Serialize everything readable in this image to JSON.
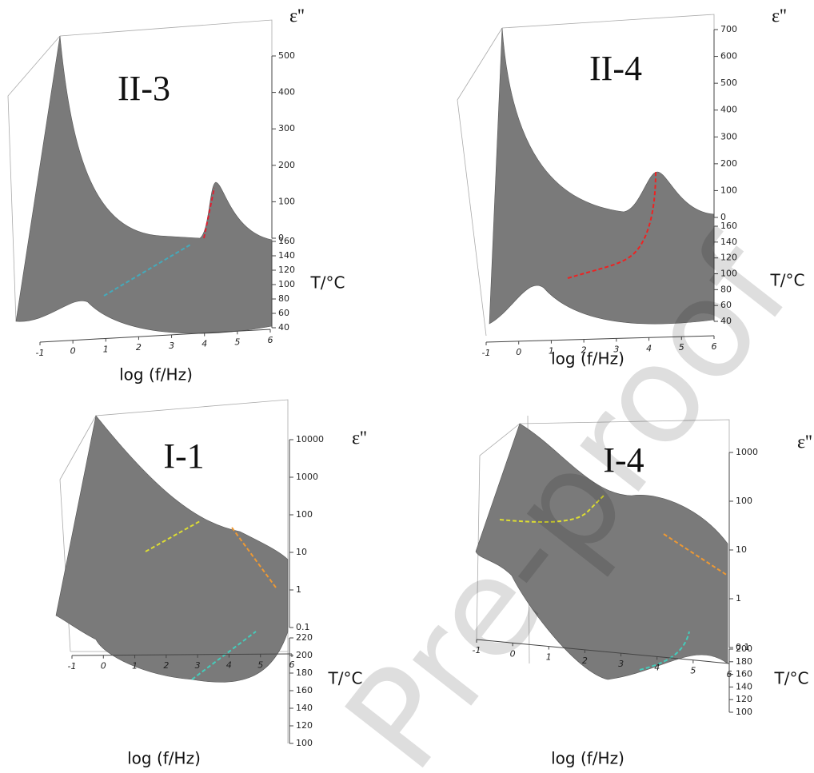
{
  "chart_data": [
    {
      "type": "surface",
      "title": "II-3",
      "x_label": "log (f/Hz)",
      "y_label": "ε''",
      "z_label": "T/°C",
      "xlim": [
        -1,
        6
      ],
      "xticks": [
        -1,
        0,
        1,
        2,
        3,
        4,
        5,
        6
      ],
      "ylim": [
        0,
        500
      ],
      "yticks": [
        0,
        100,
        200,
        300,
        400,
        500
      ],
      "ylog": false,
      "zlim": [
        40,
        160
      ],
      "zticks": [
        40,
        60,
        80,
        100,
        120,
        140,
        160
      ],
      "color": "#7a7a7a"
    },
    {
      "type": "surface",
      "title": "II-4",
      "x_label": "log (f/Hz)",
      "y_label": "ε''",
      "z_label": "T/°C",
      "xlim": [
        -1,
        6
      ],
      "xticks": [
        -1,
        0,
        1,
        2,
        3,
        4,
        5,
        6
      ],
      "ylim": [
        0,
        700
      ],
      "yticks": [
        0,
        100,
        200,
        300,
        400,
        500,
        600,
        700
      ],
      "ylog": false,
      "zlim": [
        40,
        160
      ],
      "zticks": [
        40,
        60,
        80,
        100,
        120,
        140,
        160
      ],
      "color": "#7a7a7a"
    },
    {
      "type": "surface",
      "title": "I-1",
      "x_label": "log (f/Hz)",
      "y_label": "ε''",
      "z_label": "T/°C",
      "xlim": [
        -1,
        6
      ],
      "xticks": [
        -1,
        0,
        1,
        2,
        3,
        4,
        5,
        6
      ],
      "ylim": [
        0.1,
        10000
      ],
      "yticks": [
        0.1,
        1,
        10,
        100,
        1000,
        10000
      ],
      "ylog": true,
      "zlim": [
        100,
        220
      ],
      "zticks": [
        100,
        120,
        140,
        160,
        180,
        200,
        220
      ],
      "color": "#7a7a7a"
    },
    {
      "type": "surface",
      "title": "I-4",
      "x_label": "log (f/Hz)",
      "y_label": "ε''",
      "z_label": "T/°C",
      "xlim": [
        -1,
        6
      ],
      "xticks": [
        -1,
        0,
        1,
        2,
        3,
        4,
        5,
        6
      ],
      "ylim": [
        0.1,
        1000
      ],
      "yticks": [
        0.1,
        1,
        10,
        100,
        1000
      ],
      "ylog": true,
      "zlim": [
        100,
        200
      ],
      "zticks": [
        100,
        120,
        140,
        160,
        180,
        200
      ],
      "color": "#7a7a7a"
    }
  ],
  "watermark": "Pre-proof"
}
